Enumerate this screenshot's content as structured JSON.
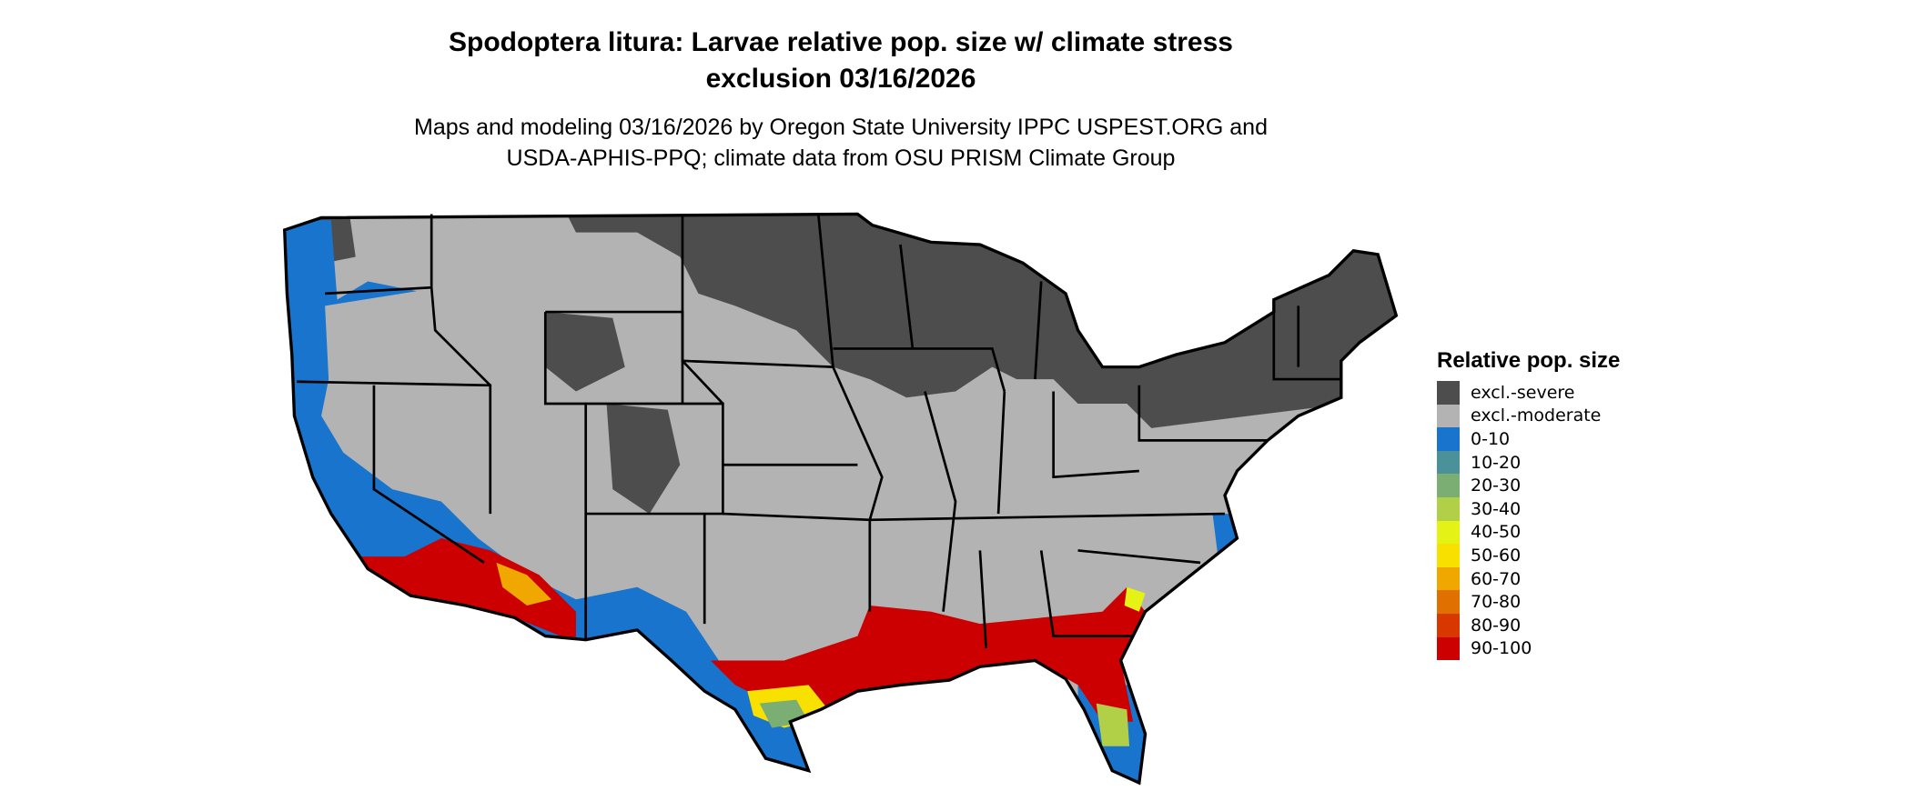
{
  "title_line1": "Spodoptera litura: Larvae relative pop. size w/ climate stress",
  "title_line2": "exclusion 03/16/2026",
  "subtitle_line1": "Maps and modeling 03/16/2026 by Oregon State University IPPC USPEST.ORG and",
  "subtitle_line2": "USDA-APHIS-PPQ; climate data from OSU PRISM Climate Group",
  "legend": {
    "title": "Relative pop. size",
    "items": [
      {
        "label": "excl.-severe",
        "color": "#4d4d4d"
      },
      {
        "label": "excl.-moderate",
        "color": "#b3b3b3"
      },
      {
        "label": "0-10",
        "color": "#1874cd"
      },
      {
        "label": "10-20",
        "color": "#4a9199"
      },
      {
        "label": "20-30",
        "color": "#7bae73"
      },
      {
        "label": "30-40",
        "color": "#b2d047"
      },
      {
        "label": "40-50",
        "color": "#e5f216"
      },
      {
        "label": "50-60",
        "color": "#f8e000"
      },
      {
        "label": "60-70",
        "color": "#f0a800"
      },
      {
        "label": "70-80",
        "color": "#e07000"
      },
      {
        "label": "80-90",
        "color": "#d83800"
      },
      {
        "label": "90-100",
        "color": "#cc0000"
      }
    ]
  }
}
